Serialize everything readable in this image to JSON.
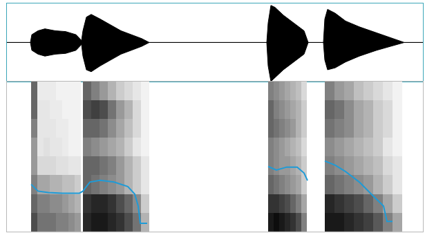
{
  "chart_data": [
    {
      "type": "area",
      "x": [
        0,
        44,
        46,
        55,
        65,
        80,
        95,
        110,
        118,
        120,
        125,
        132,
        145,
        160,
        175,
        190,
        205,
        216,
        386,
        388,
        392,
        398,
        410,
        425,
        440,
        446,
        468,
        470,
        474,
        485,
        500,
        520,
        545,
        565,
        585,
        615
      ],
      "series": [
        {
          "color": "#000000",
          "values": [
            0,
            0,
            0.2,
            0.3,
            0.35,
            0.3,
            0.28,
            0.2,
            0.05,
            0.3,
            0.65,
            0.72,
            0.6,
            0.45,
            0.3,
            0.2,
            0.1,
            0,
            0,
            0.5,
            0.95,
            0.9,
            0.7,
            0.5,
            0.3,
            0,
            0,
            0.6,
            0.85,
            0.75,
            0.55,
            0.4,
            0.25,
            0.12,
            0,
            0
          ]
        },
        {
          "color": "#000000",
          "values": [
            0,
            0,
            -0.2,
            -0.3,
            -0.35,
            -0.3,
            -0.28,
            -0.2,
            -0.05,
            -0.35,
            -0.7,
            -0.75,
            -0.6,
            -0.45,
            -0.3,
            -0.2,
            -0.1,
            0,
            0,
            -0.6,
            -1,
            -0.9,
            -0.7,
            -0.5,
            -0.3,
            0,
            0,
            -0.45,
            -0.7,
            -0.65,
            -0.5,
            -0.35,
            -0.2,
            -0.1,
            0,
            0
          ]
        }
      ],
      "xlim": [
        10,
        612
      ],
      "ylim": [
        -1,
        1
      ],
      "tick_labels": false,
      "grid": false
    },
    {
      "type": "heatmap",
      "y": [
        0.0625,
        0.1875,
        0.3125,
        0.4375,
        0.5625,
        0.6875,
        0.8125,
        0.9375
      ],
      "segments": [
        {
          "x": [
            49.5,
            58.5,
            67.5,
            76.5,
            85.5,
            94.5,
            103.5,
            112.5
          ],
          "z": [
            [
              0.7,
              0.6,
              0.5,
              0.4,
              0.4,
              0.5,
              0.6,
              0.6
            ],
            [
              0.55,
              0.5,
              0.35,
              0.15,
              0.1,
              0.1,
              0.1,
              0.08
            ],
            [
              0.55,
              0.5,
              0.35,
              0.15,
              0.12,
              0.1,
              0.1,
              0.08
            ],
            [
              0.55,
              0.45,
              0.3,
              0.15,
              0.1,
              0.1,
              0.08,
              0.08
            ],
            [
              0.5,
              0.45,
              0.3,
              0.12,
              0.1,
              0.08,
              0.08,
              0.05
            ],
            [
              0.5,
              0.4,
              0.25,
              0.12,
              0.08,
              0.08,
              0.05,
              0.05
            ],
            [
              0.45,
              0.35,
              0.25,
              0.1,
              0.05,
              0.05,
              0.05,
              0.05
            ],
            [
              0.4,
              0.3,
              0.2,
              0.1,
              0.05,
              0.05,
              0.05,
              0.05
            ]
          ]
        },
        {
          "x": [
            126,
            138,
            150,
            162,
            174,
            186,
            198,
            210
          ],
          "z": [
            [
              0.85,
              0.8,
              0.6,
              0.6,
              0.5,
              0.6,
              0.7,
              0.6
            ],
            [
              0.9,
              0.85,
              0.55,
              0.6,
              0.45,
              0.6,
              0.75,
              0.5
            ],
            [
              0.9,
              0.85,
              0.5,
              0.55,
              0.4,
              0.55,
              0.7,
              0.4
            ],
            [
              0.85,
              0.8,
              0.45,
              0.5,
              0.35,
              0.45,
              0.55,
              0.3
            ],
            [
              0.8,
              0.7,
              0.4,
              0.4,
              0.3,
              0.35,
              0.4,
              0.2
            ],
            [
              0.7,
              0.6,
              0.3,
              0.3,
              0.2,
              0.25,
              0.3,
              0.15
            ],
            [
              0.55,
              0.45,
              0.2,
              0.2,
              0.1,
              0.15,
              0.15,
              0.1
            ],
            [
              0.3,
              0.2,
              0.1,
              0.1,
              0.05,
              0.05,
              0.05,
              0.05
            ]
          ]
        },
        {
          "x": [
            392,
            400,
            408,
            416,
            424,
            432,
            440
          ],
          "z": [
            [
              0.9,
              0.8,
              0.6,
              0.5,
              0.5,
              0.6,
              0.6,
              0.5
            ],
            [
              0.95,
              0.8,
              0.55,
              0.45,
              0.45,
              0.55,
              0.5,
              0.45
            ],
            [
              0.9,
              0.75,
              0.5,
              0.4,
              0.4,
              0.5,
              0.45,
              0.4
            ],
            [
              0.85,
              0.7,
              0.45,
              0.4,
              0.35,
              0.45,
              0.4,
              0.35
            ],
            [
              0.8,
              0.6,
              0.4,
              0.35,
              0.3,
              0.4,
              0.35,
              0.3
            ],
            [
              0.7,
              0.5,
              0.35,
              0.3,
              0.25,
              0.3,
              0.3,
              0.25
            ],
            [
              0.5,
              0.35,
              0.2,
              0.2,
              0.15,
              0.2,
              0.2,
              0.15
            ]
          ]
        },
        {
          "x": [
            477,
            491,
            505,
            519,
            533,
            547,
            561,
            575
          ],
          "z": [
            [
              0.9,
              0.85,
              0.6,
              0.5,
              0.45,
              0.55,
              0.6,
              0.5
            ],
            [
              0.9,
              0.8,
              0.55,
              0.45,
              0.4,
              0.5,
              0.55,
              0.4
            ],
            [
              0.85,
              0.75,
              0.5,
              0.4,
              0.35,
              0.45,
              0.45,
              0.35
            ],
            [
              0.8,
              0.7,
              0.45,
              0.35,
              0.3,
              0.35,
              0.35,
              0.25
            ],
            [
              0.75,
              0.6,
              0.4,
              0.3,
              0.25,
              0.3,
              0.3,
              0.2
            ],
            [
              0.65,
              0.5,
              0.3,
              0.25,
              0.2,
              0.2,
              0.2,
              0.15
            ],
            [
              0.5,
              0.35,
              0.2,
              0.15,
              0.1,
              0.15,
              0.15,
              0.1
            ],
            [
              0.35,
              0.2,
              0.1,
              0.1,
              0.05,
              0.05,
              0.05,
              0.05
            ]
          ]
        }
      ],
      "zlim": [
        0,
        1
      ],
      "color": "#000000",
      "series": [
        {
          "type": "line",
          "color": "#1e9bd7",
          "x": [
            45,
            55,
            70,
            90,
            115,
            120,
            130,
            145,
            165,
            185,
            195,
            200,
            203,
            213,
            300,
            388,
            400,
            415,
            430,
            440,
            445,
            455,
            470,
            485,
            500,
            520,
            540,
            555,
            560,
            568
          ],
          "values": [
            0.315,
            0.27,
            0.26,
            0.256,
            0.256,
            0.27,
            0.33,
            0.342,
            0.33,
            0.3,
            0.25,
            0.17,
            0.055,
            0.055,
            null,
            0.434,
            0.41,
            0.43,
            0.43,
            0.39,
            0.34,
            null,
            0.47,
            0.443,
            0.4,
            0.33,
            0.237,
            0.17,
            0.068,
            0.068
          ]
        }
      ],
      "xlim": [
        10,
        612
      ],
      "ylim": [
        0,
        1
      ],
      "tick_labels": false,
      "grid": false
    }
  ]
}
